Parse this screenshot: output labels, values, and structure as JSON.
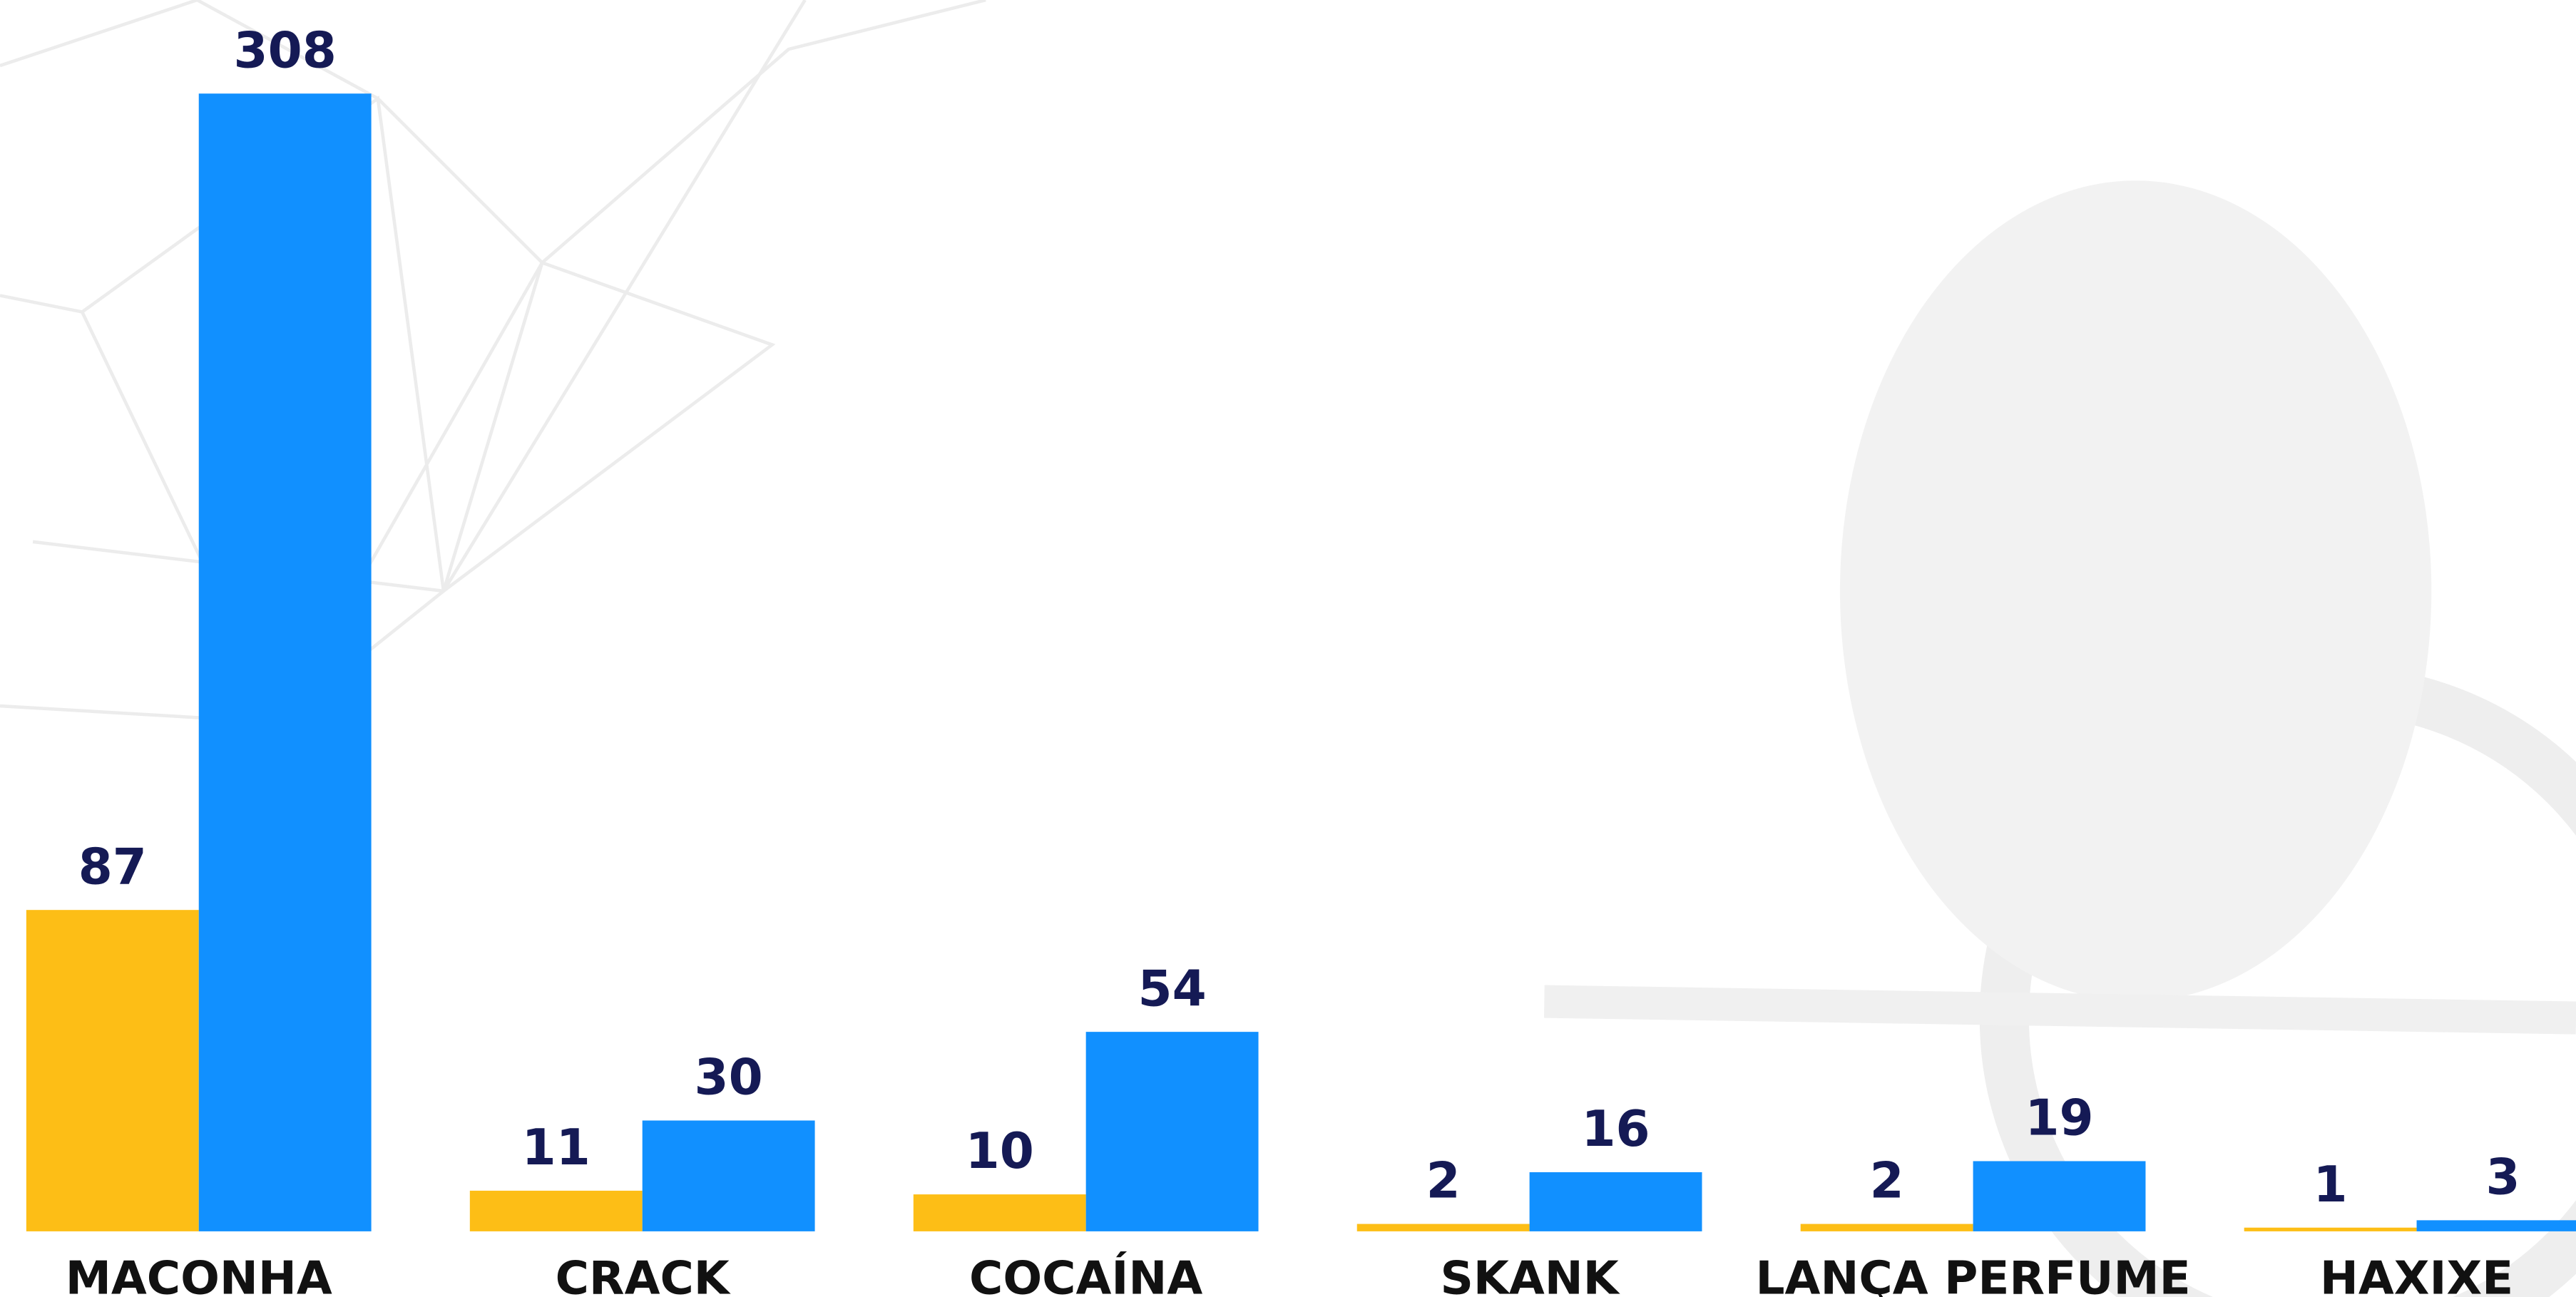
{
  "chart_data": {
    "type": "bar",
    "categories": [
      "MACONHA",
      "CRACK",
      "COCAÍNA",
      "SKANK",
      "LANÇA PERFUME",
      "HAXIXE"
    ],
    "series": [
      {
        "color": "#fdbe16",
        "values": [
          87,
          11,
          10,
          2,
          2,
          1
        ]
      },
      {
        "color": "#1190ff",
        "values": [
          308,
          30,
          54,
          16,
          19,
          3
        ]
      }
    ]
  }
}
